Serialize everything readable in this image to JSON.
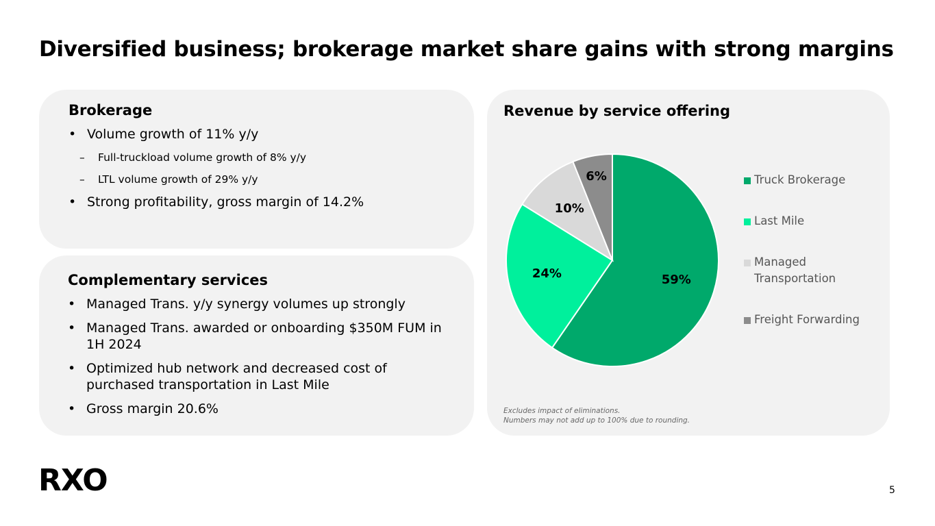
{
  "title": "Diversified business; brokerage market share gains with strong margins",
  "brokerage": {
    "heading": "Brokerage",
    "items": [
      {
        "text": "Volume growth of 11% y/y",
        "subitems": [
          "Full-truckload volume growth of 8% y/y",
          "LTL volume growth of 29% y/y"
        ]
      },
      {
        "text": "Strong profitability, gross margin of 14.2%"
      }
    ]
  },
  "complementary": {
    "heading": "Complementary services",
    "items": [
      "Managed Trans. y/y synergy volumes up strongly",
      "Managed Trans. awarded or onboarding $350M FUM in 1H 2024",
      "Optimized hub network and decreased cost of purchased transportation in Last Mile",
      "Gross margin 20.6%"
    ]
  },
  "chart_data": {
    "type": "pie",
    "title": "Revenue by service offering",
    "categories": [
      "Truck Brokerage",
      "Last Mile",
      "Managed Transportation",
      "Freight Forwarding"
    ],
    "values": [
      59,
      24,
      10,
      6
    ],
    "value_labels": [
      "59%",
      "24%",
      "10%",
      "6%"
    ],
    "colors": [
      "#00a96b",
      "#00f09c",
      "#d9d9d9",
      "#8c8c8c"
    ],
    "legend": "right",
    "note": [
      "Excludes impact of eliminations.",
      "Numbers may not add up to 100% due to rounding."
    ]
  },
  "footer": {
    "logo": "RXO",
    "page_number": "5"
  }
}
